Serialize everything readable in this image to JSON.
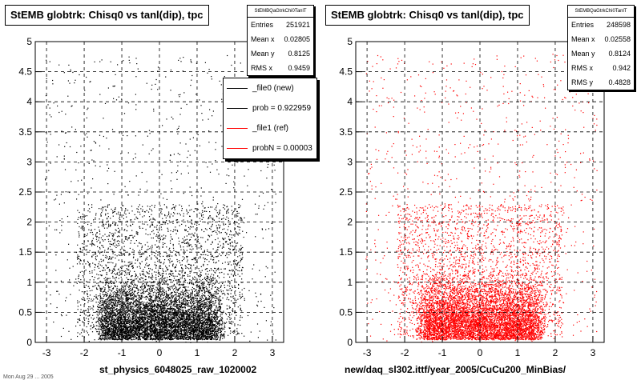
{
  "colors": {
    "file0": "#000000",
    "file1": "#ff0000"
  },
  "footer": "Mon Aug 29 ... 2005",
  "chart_data": [
    {
      "type": "scatter",
      "title": "StEMB globtrk: Chisq0 vs tanl(dip), tpc",
      "xlabel": "st_physics_6048025_raw_1020002",
      "ylabel": "",
      "xlim": [
        -3.3,
        3.3
      ],
      "ylim": [
        0,
        5
      ],
      "xticks": [
        -3,
        -2,
        -1,
        0,
        1,
        2,
        3
      ],
      "yticks": [
        0,
        0.5,
        1,
        1.5,
        2,
        2.5,
        3,
        3.5,
        4,
        4.5,
        5
      ],
      "grid": true,
      "color": "#000000",
      "stats": {
        "name": "StEMBQaGtrkChi0TanlT",
        "entries": {
          "label": "Entries",
          "value": "251921"
        },
        "mean_x": {
          "label": "Mean x",
          "value": "0.02805"
        },
        "mean_y": {
          "label": "Mean y",
          "value": "0.8125"
        },
        "rms_x": {
          "label": "RMS x",
          "value": "0.9459"
        }
      },
      "legend": [
        {
          "label": "_file0 (new)",
          "color": "#000000"
        },
        {
          "label": "prob = 0.922959",
          "color": "#000000"
        },
        {
          "label": "_file1 (ref)",
          "color": "#ff0000"
        },
        {
          "label": "probN = 0.00003",
          "color": "#ff0000"
        }
      ]
    },
    {
      "type": "scatter",
      "title": "StEMB globtrk: Chisq0 vs tanl(dip), tpc",
      "xlabel": "new/daq_sl302.ittf/year_2005/CuCu200_MinBias/",
      "ylabel": "",
      "xlim": [
        -3.3,
        3.3
      ],
      "ylim": [
        0,
        5
      ],
      "xticks": [
        -3,
        -2,
        -1,
        0,
        1,
        2,
        3
      ],
      "yticks": [
        0,
        0.5,
        1,
        1.5,
        2,
        2.5,
        3,
        3.5,
        4,
        4.5,
        5
      ],
      "grid": true,
      "color": "#ff0000",
      "stats": {
        "name": "StEMBQaGtrkChi0TanlT",
        "entries": {
          "label": "Entries",
          "value": "248598"
        },
        "mean_x": {
          "label": "Mean x",
          "value": "0.02558"
        },
        "mean_y": {
          "label": "Mean y",
          "value": "0.8124"
        },
        "rms_x": {
          "label": "RMS x",
          "value": "0.942"
        },
        "rms_y": {
          "label": "RMS y",
          "value": "0.4828"
        }
      }
    }
  ]
}
